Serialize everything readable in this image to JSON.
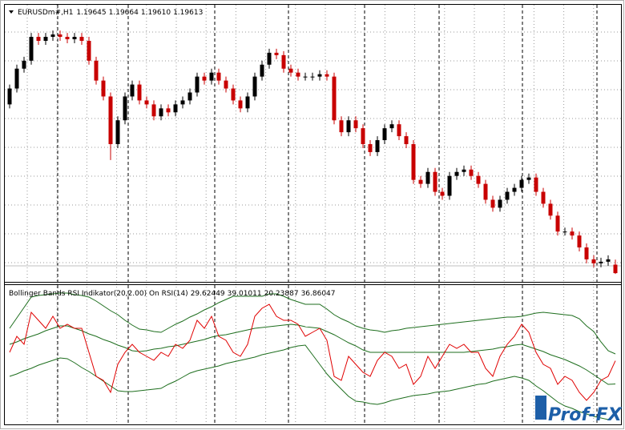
{
  "chart_data": [
    {
      "type": "candlestick",
      "title": "EURUSDm#,H1",
      "quote": [
        "1.19645",
        "1.19664",
        "1.19610",
        "1.19613"
      ],
      "bull_color": "#000000",
      "bear_color": "#c80000",
      "ylim": [
        1.1958,
        1.2062
      ],
      "ohlc": [
        [
          1.2025,
          1.20325,
          1.20235,
          1.2031
        ],
        [
          1.2031,
          1.204,
          1.20295,
          1.20385
        ],
        [
          1.20385,
          1.2043,
          1.2037,
          1.20415
        ],
        [
          1.20415,
          1.2052,
          1.204,
          1.20505
        ],
        [
          1.20505,
          1.2052,
          1.20475,
          1.2049
        ],
        [
          1.2049,
          1.2052,
          1.20475,
          1.20505
        ],
        [
          1.20505,
          1.20529,
          1.2049,
          1.20514
        ],
        [
          1.20514,
          1.20529,
          1.2049,
          1.20505
        ],
        [
          1.20505,
          1.2052,
          1.20481,
          1.20496
        ],
        [
          1.20496,
          1.2052,
          1.20481,
          1.20505
        ],
        [
          1.20505,
          1.2052,
          1.20475,
          1.2049
        ],
        [
          1.2049,
          1.20505,
          1.204,
          1.20415
        ],
        [
          1.20415,
          1.2043,
          1.20325,
          1.2034
        ],
        [
          1.2034,
          1.20355,
          1.20265,
          1.2028
        ],
        [
          1.2028,
          1.20295,
          1.2004,
          1.201
        ],
        [
          1.201,
          1.20205,
          1.20085,
          1.2019
        ],
        [
          1.2019,
          1.20295,
          1.20175,
          1.2028
        ],
        [
          1.2028,
          1.2034,
          1.20265,
          1.20325
        ],
        [
          1.20325,
          1.2034,
          1.2025,
          1.20265
        ],
        [
          1.20265,
          1.2028,
          1.20235,
          1.2025
        ],
        [
          1.2025,
          1.20265,
          1.2019,
          1.20205
        ],
        [
          1.20205,
          1.2025,
          1.2019,
          1.20235
        ],
        [
          1.20235,
          1.2025,
          1.20205,
          1.2022
        ],
        [
          1.2022,
          1.20265,
          1.20205,
          1.2025
        ],
        [
          1.2025,
          1.2028,
          1.20235,
          1.20265
        ],
        [
          1.20265,
          1.2031,
          1.2025,
          1.20295
        ],
        [
          1.20295,
          1.2037,
          1.2028,
          1.20355
        ],
        [
          1.20355,
          1.2037,
          1.20325,
          1.2034
        ],
        [
          1.2034,
          1.20385,
          1.20325,
          1.2037
        ],
        [
          1.2037,
          1.20385,
          1.20325,
          1.2034
        ],
        [
          1.2034,
          1.20355,
          1.20295,
          1.2031
        ],
        [
          1.2031,
          1.20325,
          1.2025,
          1.20265
        ],
        [
          1.20265,
          1.2028,
          1.2022,
          1.20235
        ],
        [
          1.20235,
          1.20295,
          1.2022,
          1.2028
        ],
        [
          1.2028,
          1.2037,
          1.20265,
          1.20355
        ],
        [
          1.20355,
          1.20415,
          1.2034,
          1.204
        ],
        [
          1.204,
          1.2046,
          1.20385,
          1.20445
        ],
        [
          1.20445,
          1.2046,
          1.20421,
          1.20436
        ],
        [
          1.20436,
          1.20451,
          1.2037,
          1.20385
        ],
        [
          1.20385,
          1.204,
          1.20355,
          1.2037
        ],
        [
          1.2037,
          1.20385,
          1.2034,
          1.20355
        ],
        [
          1.20355,
          1.2037,
          1.2034,
          1.20355
        ],
        [
          1.20355,
          1.2037,
          1.2034,
          1.20355
        ],
        [
          1.20355,
          1.20379,
          1.2034,
          1.20364
        ],
        [
          1.20364,
          1.20379,
          1.2034,
          1.20355
        ],
        [
          1.20355,
          1.2037,
          1.20175,
          1.2019
        ],
        [
          1.2019,
          1.20205,
          1.2013,
          1.20145
        ],
        [
          1.20145,
          1.20205,
          1.2013,
          1.2019
        ],
        [
          1.2019,
          1.20205,
          1.20145,
          1.2016
        ],
        [
          1.2016,
          1.20175,
          1.20085,
          1.201
        ],
        [
          1.201,
          1.20115,
          1.20055,
          1.2007
        ],
        [
          1.2007,
          1.2013,
          1.20055,
          1.20115
        ],
        [
          1.20115,
          1.20175,
          1.201,
          1.2016
        ],
        [
          1.2016,
          1.2019,
          1.20145,
          1.20175
        ],
        [
          1.20175,
          1.2019,
          1.20115,
          1.2013
        ],
        [
          1.2013,
          1.20145,
          1.20085,
          1.201
        ],
        [
          1.201,
          1.20115,
          1.1995,
          1.19965
        ],
        [
          1.19965,
          1.1998,
          1.19935,
          1.1995
        ],
        [
          1.1995,
          1.2001,
          1.19935,
          1.19995
        ],
        [
          1.19995,
          1.2001,
          1.19905,
          1.1992
        ],
        [
          1.1992,
          1.19935,
          1.1989,
          1.19905
        ],
        [
          1.19905,
          1.19995,
          1.1989,
          1.1998
        ],
        [
          1.1998,
          1.2001,
          1.19965,
          1.19995
        ],
        [
          1.19995,
          1.20019,
          1.1998,
          1.20004
        ],
        [
          1.20004,
          1.20019,
          1.19965,
          1.1998
        ],
        [
          1.1998,
          1.19995,
          1.19935,
          1.1995
        ],
        [
          1.1995,
          1.19965,
          1.19875,
          1.1989
        ],
        [
          1.1989,
          1.19905,
          1.19845,
          1.1986
        ],
        [
          1.1986,
          1.19905,
          1.19845,
          1.1989
        ],
        [
          1.1989,
          1.19935,
          1.19875,
          1.1992
        ],
        [
          1.1992,
          1.1995,
          1.19905,
          1.19935
        ],
        [
          1.19935,
          1.1998,
          1.1992,
          1.19965
        ],
        [
          1.19965,
          1.19989,
          1.1995,
          1.19974
        ],
        [
          1.19974,
          1.19989,
          1.19905,
          1.1992
        ],
        [
          1.1992,
          1.19935,
          1.1986,
          1.19875
        ],
        [
          1.19875,
          1.1989,
          1.19815,
          1.1983
        ],
        [
          1.1983,
          1.19845,
          1.19755,
          1.1977
        ],
        [
          1.1977,
          1.19785,
          1.19755,
          1.1977
        ],
        [
          1.1977,
          1.19785,
          1.1974,
          1.19755
        ],
        [
          1.19755,
          1.1977,
          1.19695,
          1.1971
        ],
        [
          1.1971,
          1.19725,
          1.1965,
          1.19665
        ],
        [
          1.19665,
          1.1968,
          1.19635,
          1.1965
        ],
        [
          1.1965,
          1.19671,
          1.19635,
          1.19656
        ],
        [
          1.19656,
          1.1968,
          1.19641,
          1.19665
        ],
        [
          1.19645,
          1.19664,
          1.1961,
          1.19613
        ]
      ]
    },
    {
      "type": "line",
      "title": "Bollinger Bands RSI Indikator(20,2.00) On RSI(14)",
      "ylim": [
        17,
        60
      ],
      "series": [
        {
          "color": "#1e6e1e",
          "values": [
            42,
            42.75,
            43.75,
            44.5,
            45.25,
            46.25,
            47,
            47.75,
            47.75,
            47,
            46.25,
            45.25,
            44.5,
            43.5,
            42.75,
            41.75,
            41,
            40,
            39.75,
            40,
            40.5,
            40.75,
            41.25,
            41.5,
            42,
            42.5,
            43,
            43.5,
            44.25,
            44.75,
            45,
            45.5,
            46,
            46.5,
            47,
            47.25,
            47.5,
            47.75,
            48,
            48.25,
            48,
            47.5,
            47.25,
            47,
            46,
            45,
            43.75,
            42.5,
            41.5,
            40.25,
            39.5,
            39.5,
            39.5,
            39.5,
            39.5,
            39.5,
            39.5,
            39.5,
            39.5,
            39.5,
            39.5,
            39.5,
            39.5,
            39.5,
            39.75,
            40,
            40.25,
            40.5,
            41,
            41.25,
            41.75,
            42,
            41.25,
            40.5,
            39.75,
            38.75,
            38,
            37.25,
            36.25,
            35.25,
            34,
            32.5,
            31,
            29.5,
            29.62449
          ]
        },
        {
          "color": "#1e6e1e",
          "values": [
            47,
            50.25,
            53.5,
            56.75,
            57.25,
            57.5,
            57.75,
            58,
            58,
            57.5,
            57.25,
            56.75,
            55.5,
            54,
            52.5,
            51.25,
            49.5,
            48,
            46.75,
            46.5,
            46,
            45.75,
            47,
            48.25,
            49.25,
            50.5,
            51.5,
            52.75,
            53.75,
            55,
            56,
            57,
            57,
            57,
            57,
            57,
            57.75,
            57.75,
            57,
            56,
            55.25,
            54.5,
            54.5,
            54.5,
            53,
            51.25,
            50,
            49,
            47.75,
            47,
            46.5,
            46.25,
            45.75,
            46.25,
            46.5,
            47,
            47.25,
            47.5,
            47.75,
            48,
            48.25,
            48.5,
            48.75,
            49,
            49.25,
            49.5,
            49.75,
            50,
            50.25,
            50.5,
            50.5,
            50.75,
            51.25,
            51.75,
            52,
            51.75,
            51.5,
            51.25,
            51,
            50,
            47.75,
            46,
            42.75,
            40,
            39.01011
          ]
        },
        {
          "color": "#1e6e1e",
          "values": [
            32,
            32.75,
            33.75,
            34.5,
            35.5,
            36.25,
            37,
            37.75,
            37.5,
            36.25,
            34.75,
            33.5,
            32,
            30.5,
            29,
            27.5,
            27.25,
            27.25,
            27.5,
            27.75,
            28,
            28.25,
            29.5,
            30.5,
            31.75,
            33,
            33.75,
            34.25,
            34.75,
            35.25,
            36,
            36.5,
            37,
            37.5,
            38,
            38.75,
            39.25,
            39.75,
            40.25,
            41,
            41.5,
            41.75,
            38.75,
            35.75,
            32.75,
            30.25,
            28,
            25.75,
            24.25,
            24,
            23.5,
            23.25,
            23.75,
            24.5,
            25,
            25.5,
            26,
            26.25,
            26.5,
            27,
            27.25,
            27.5,
            28,
            28.5,
            29,
            29.5,
            29.75,
            30.5,
            31,
            31.5,
            32,
            31.5,
            30.75,
            29,
            27.5,
            25.75,
            24,
            22.75,
            22,
            21,
            20.25,
            19.5,
            19,
            18.5,
            20.23887
          ]
        },
        {
          "color": "#e00000",
          "values": [
            39.5,
            44.5,
            42,
            52,
            49.5,
            47,
            50.75,
            47,
            48.25,
            47,
            47,
            39.5,
            32,
            30.75,
            27,
            35.75,
            39.5,
            42,
            39.5,
            38.25,
            37,
            39.5,
            38.25,
            42,
            40.75,
            43.25,
            49.5,
            47,
            50.75,
            44.5,
            43.25,
            39.5,
            38.25,
            42,
            50.75,
            53.25,
            54.5,
            50.75,
            49.5,
            49.5,
            48.25,
            44.5,
            45.75,
            47,
            43.25,
            32,
            30.75,
            38.25,
            35.75,
            33.25,
            32,
            37,
            39.5,
            38.25,
            34.5,
            35.75,
            29.5,
            32,
            38.25,
            34.5,
            38.25,
            42,
            40.75,
            42,
            39.5,
            39.5,
            34.5,
            32,
            38.25,
            42,
            44.5,
            48.25,
            45.75,
            39.5,
            35.75,
            34.5,
            29.5,
            32,
            30.75,
            27,
            24.5,
            27,
            30.75,
            32,
            36.86047
          ]
        }
      ]
    }
  ],
  "watermark": "Prof-FX"
}
